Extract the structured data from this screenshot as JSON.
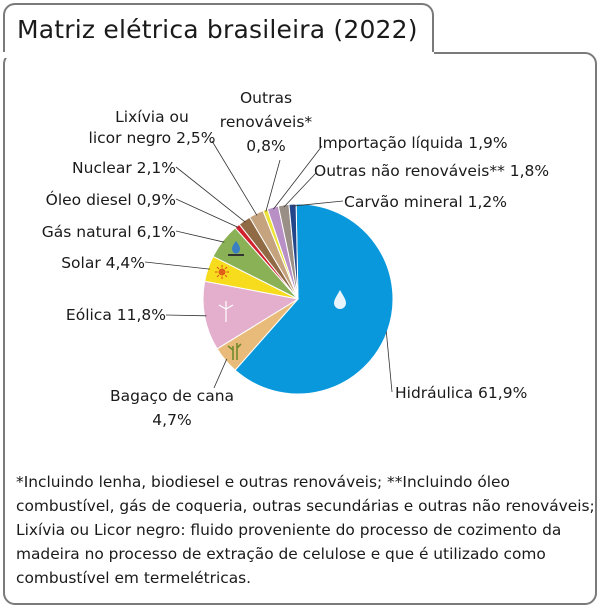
{
  "title": "Matriz elétrica brasileira (2022)",
  "chart_data": {
    "type": "pie",
    "title": "Matriz elétrica brasileira (2022)",
    "unit": "%",
    "slices": [
      {
        "name": "Hidráulica",
        "value": 61.9,
        "label": "Hidráulica 61,9%",
        "color": "#0a98dc"
      },
      {
        "name": "Bagaço de cana",
        "value": 4.7,
        "label": "Bagaço de cana 4,7%",
        "color": "#e9bb7a"
      },
      {
        "name": "Eólica",
        "value": 11.8,
        "label": "Eólica 11,8%",
        "color": "#e3afcd"
      },
      {
        "name": "Solar",
        "value": 4.4,
        "label": "Solar 4,4%",
        "color": "#f6dc1c"
      },
      {
        "name": "Gás natural",
        "value": 6.1,
        "label": "Gás natural 6,1%",
        "color": "#8bb156"
      },
      {
        "name": "Óleo diesel",
        "value": 0.9,
        "label": "Óleo diesel 0,9%",
        "color": "#d1202e"
      },
      {
        "name": "Nuclear",
        "value": 2.1,
        "label": "Nuclear 2,1%",
        "color": "#8f6a45"
      },
      {
        "name": "Lixívia ou licor negro",
        "value": 2.5,
        "label": "Lixívia ou licor negro 2,5%",
        "color": "#c5a37f"
      },
      {
        "name": "Outras renováveis*",
        "value": 0.8,
        "label": "Outras renováveis* 0,8%",
        "color": "#ece238"
      },
      {
        "name": "Importação líquida",
        "value": 1.9,
        "label": "Importação líquida 1,9%",
        "color": "#b890c5"
      },
      {
        "name": "Outras não renováveis**",
        "value": 1.8,
        "label": "Outras não renováveis** 1,8%",
        "color": "#9a8f86"
      },
      {
        "name": "Carvão mineral",
        "value": 1.2,
        "label": "Carvão mineral 1,2%",
        "color": "#23468a"
      }
    ]
  },
  "footnote": "*Incluindo lenha, biodiesel e outras renováveis; **Incluindo óleo combustível, gás de coqueria, outras secundárias e outras não renováveis; Lixívia ou Licor negro: fluido proveniente do processo de cozimento da madeira no processo de extração de celulose e que é utilizado como combustível em termelétricas."
}
